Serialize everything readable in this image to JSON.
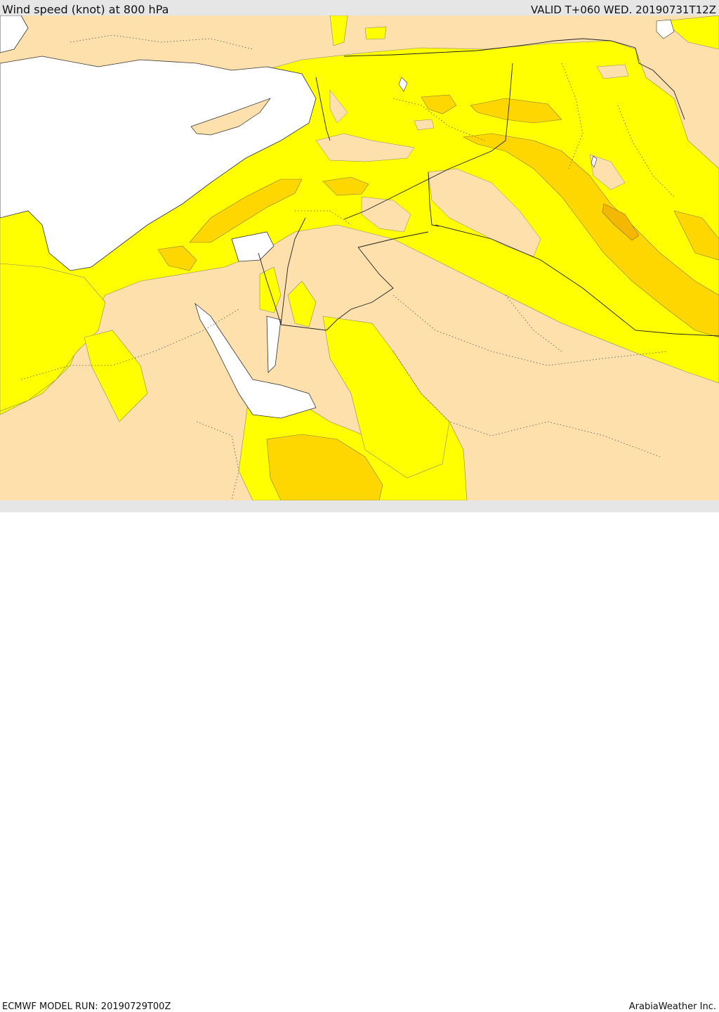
{
  "header": {
    "title": "Wind speed (knot) at 800 hPa",
    "valid_time": "VALID T+060 WED. 20190731T12Z"
  },
  "footer": {
    "model_run": "ECMWF MODEL RUN: 20190729T00Z",
    "credit": "ArabiaWeather Inc."
  },
  "colors": {
    "land": "#fde0ac",
    "water": "#ffffff",
    "wind_band_1": "#ffff00",
    "wind_band_2": "#ffd700",
    "wind_band_3": "#f5b800",
    "bar": "#e6e6e6"
  }
}
